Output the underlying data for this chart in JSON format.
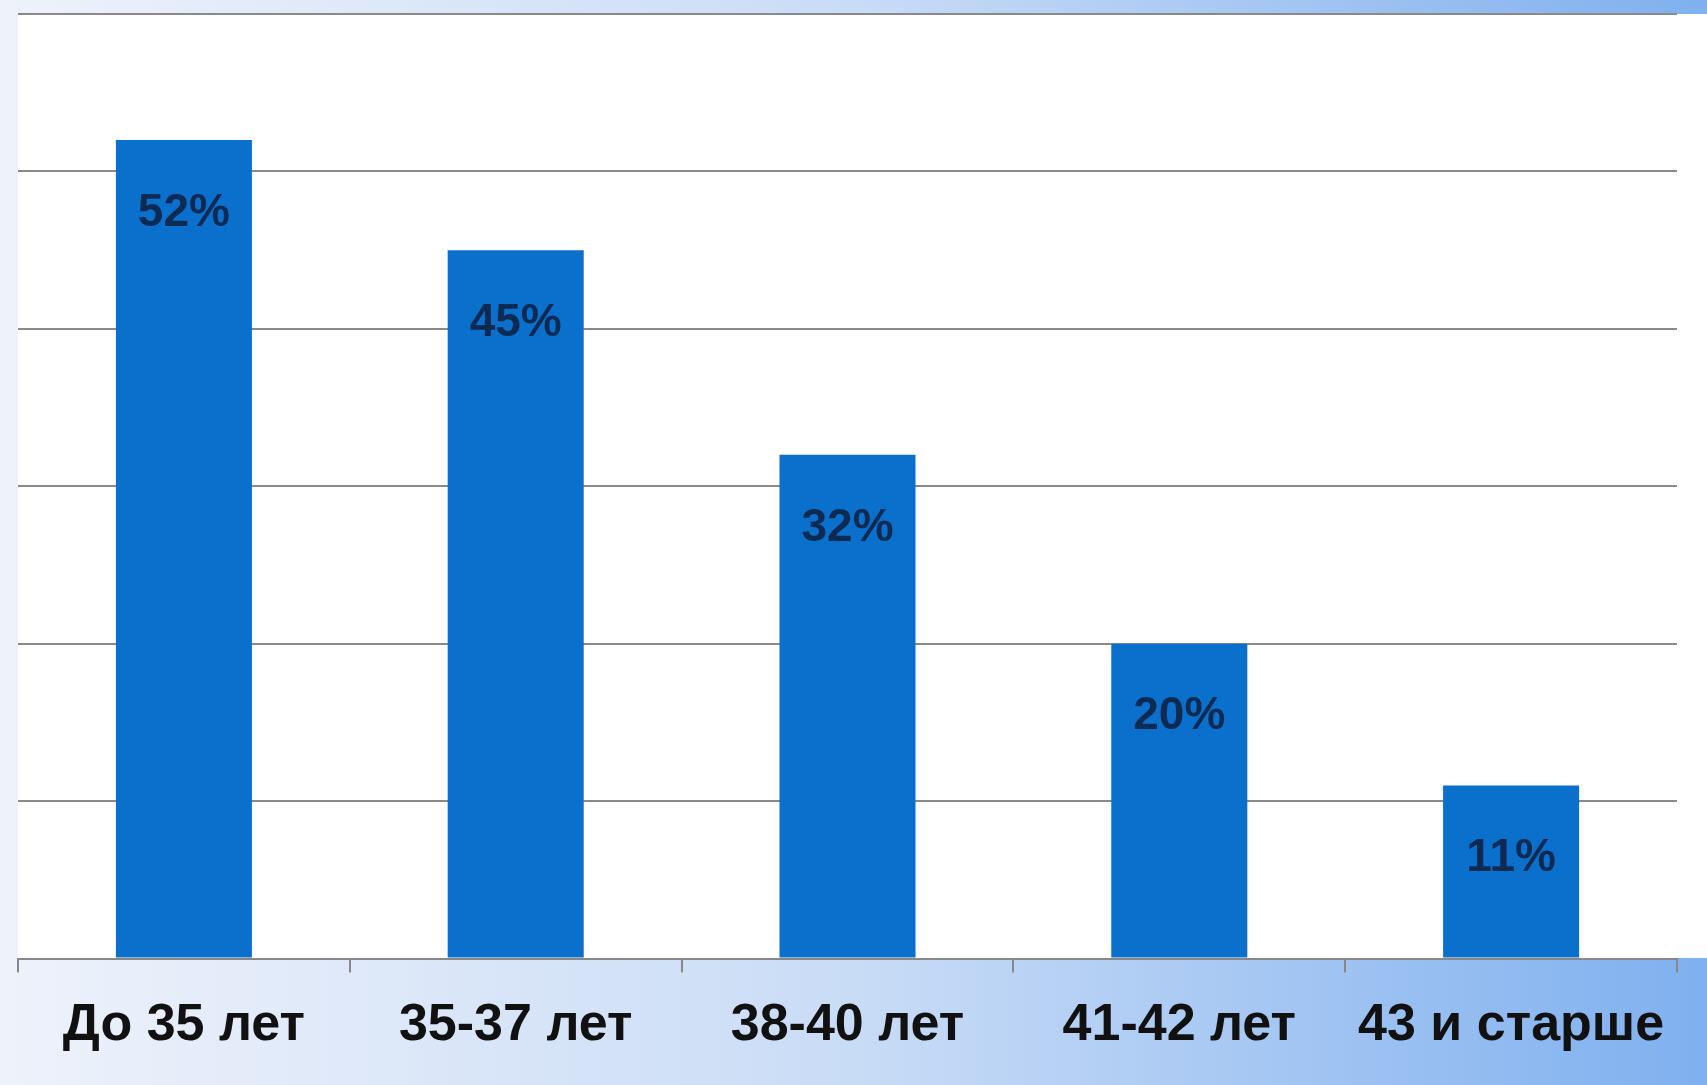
{
  "chart_data": {
    "type": "bar",
    "categories": [
      "До 35 лет",
      "35-37 лет",
      "38-40 лет",
      "41-42 лет",
      "43 и старше"
    ],
    "values": [
      52,
      45,
      32,
      20,
      11
    ],
    "value_labels": [
      "52%",
      "45%",
      "32%",
      "20%",
      "11%"
    ],
    "color": "#0b6fcc",
    "tick_labels": "x",
    "grid": "y",
    "legend": false
  }
}
